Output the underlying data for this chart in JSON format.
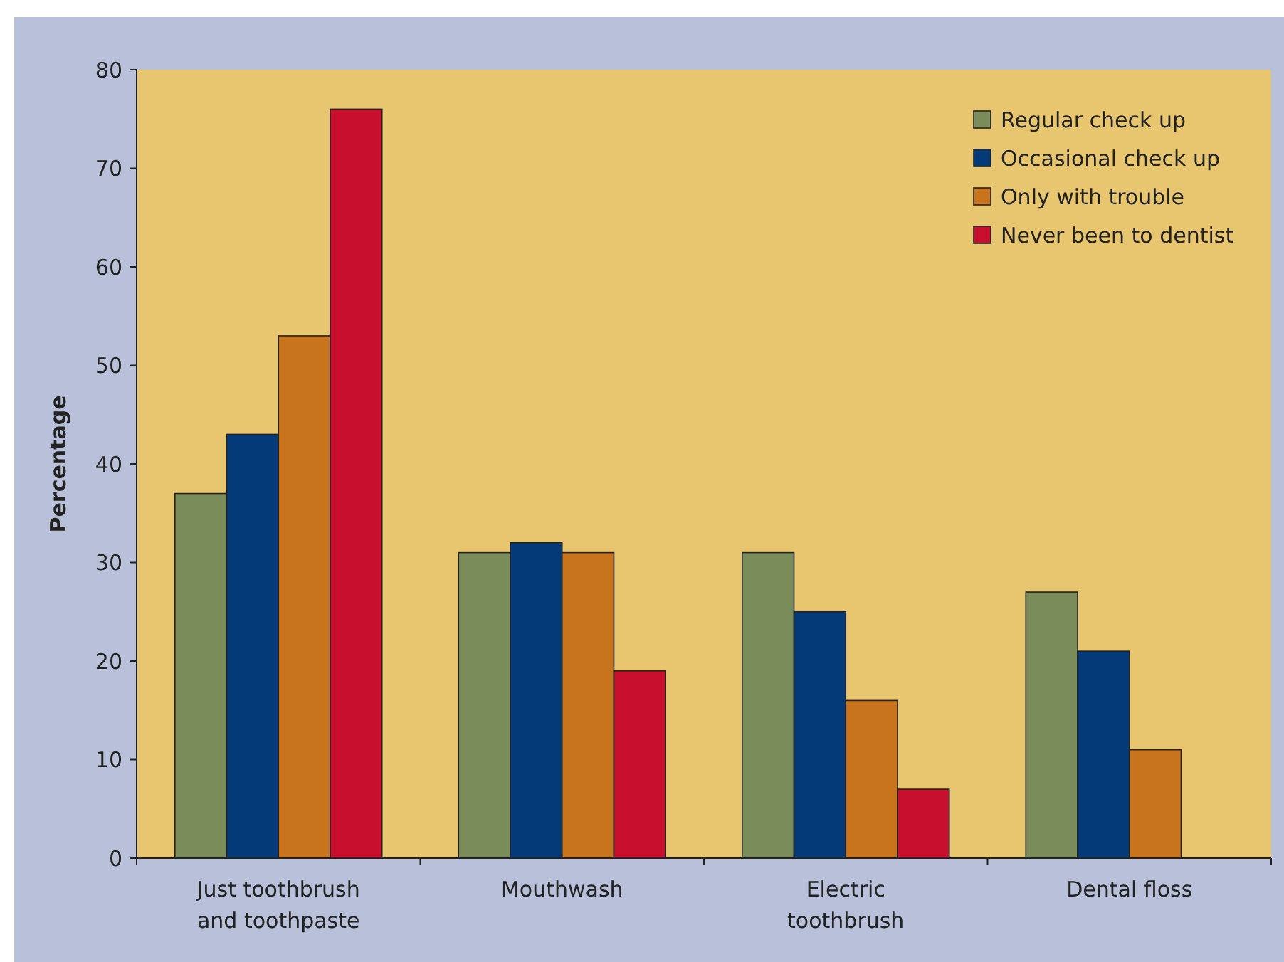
{
  "chart_data": {
    "type": "bar",
    "ylabel": "Percentage",
    "categories": [
      "Just toothbrush and toothpaste",
      "Mouthwash",
      "Electric toothbrush",
      "Dental floss"
    ],
    "series": [
      {
        "name": "Regular check up",
        "color": "#7a8c5a",
        "values": [
          37,
          31,
          31,
          27
        ]
      },
      {
        "name": "Occasional check up",
        "color": "#043a78",
        "values": [
          43,
          32,
          25,
          21
        ]
      },
      {
        "name": "Only with trouble",
        "color": "#c7741c",
        "values": [
          53,
          31,
          16,
          11
        ]
      },
      {
        "name": "Never been to dentist",
        "color": "#c8102e",
        "values": [
          76,
          19,
          7,
          null
        ]
      }
    ],
    "ylim": [
      0,
      80
    ],
    "yticks": [
      0,
      10,
      20,
      30,
      40,
      50,
      60,
      70,
      80
    ],
    "grid": false,
    "legend": "top right"
  }
}
